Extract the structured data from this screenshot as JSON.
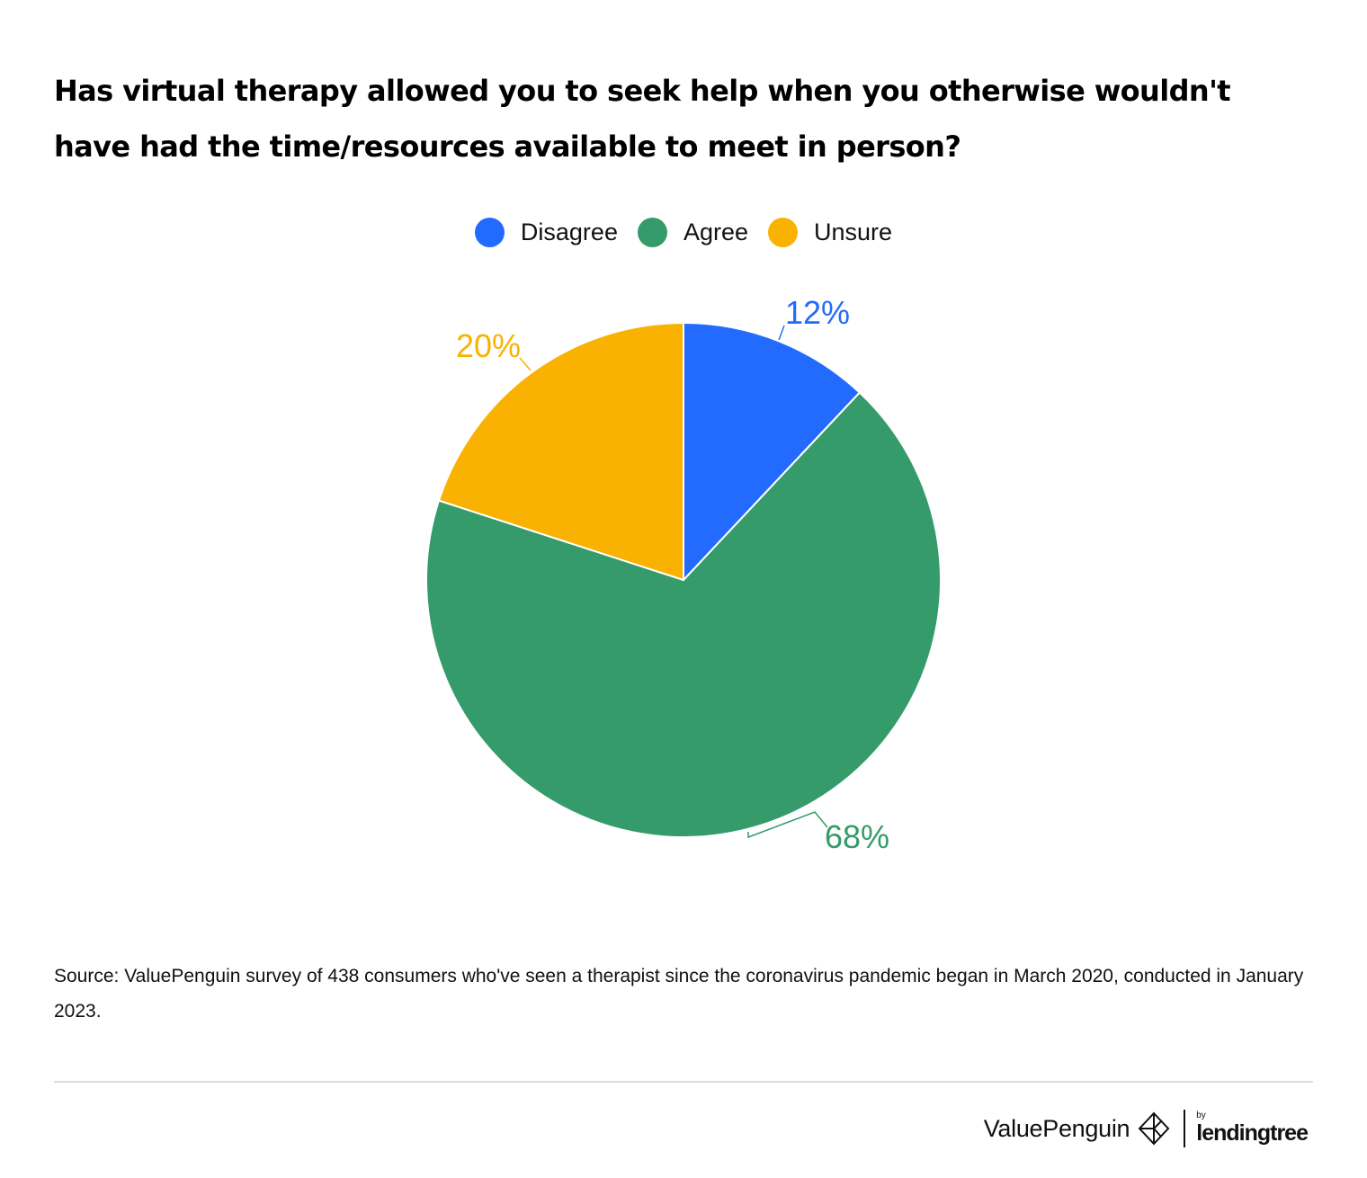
{
  "chart_data": {
    "type": "pie",
    "title": "Has virtual therapy allowed you to seek help when you otherwise wouldn't have had the time/resources available to meet in person?",
    "legend_position": "top-center",
    "slices": [
      {
        "name": "Disagree",
        "value": 12,
        "label": "12%",
        "color": "#236BFE"
      },
      {
        "name": "Agree",
        "value": 68,
        "label": "68%",
        "color": "#359B6A"
      },
      {
        "name": "Unsure",
        "value": 20,
        "label": "20%",
        "color": "#F9B202"
      }
    ]
  },
  "source": "Source: ValuePenguin survey of 438 consumers who've seen a therapist since the coronavirus pandemic began in March 2020, conducted in January 2023.",
  "brand": {
    "name": "ValuePenguin",
    "by": "by",
    "partner": "lendingtree"
  }
}
